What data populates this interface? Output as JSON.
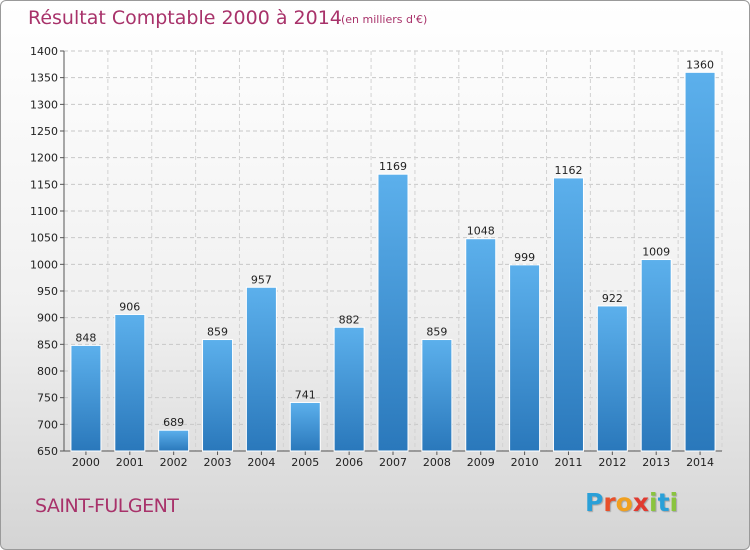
{
  "header": {
    "title": "Résultat Comptable 2000 à 2014",
    "unit": "(en milliers d'€)"
  },
  "footer": {
    "city": "SAINT-FULGENT",
    "logo_letters": [
      "P",
      "r",
      "o",
      "x",
      "i",
      "t",
      "i"
    ],
    "logo_colors": [
      "#2aa0d8",
      "#e8502a",
      "#f0a020",
      "#e03a30",
      "#8ac43f",
      "#2aa0d8",
      "#8ac43f"
    ]
  },
  "chart_data": {
    "type": "bar",
    "title": "Résultat Comptable 2000 à 2014",
    "categories": [
      "2000",
      "2001",
      "2002",
      "2003",
      "2004",
      "2005",
      "2006",
      "2007",
      "2008",
      "2009",
      "2010",
      "2011",
      "2012",
      "2013",
      "2014"
    ],
    "values": [
      848,
      906,
      689,
      859,
      957,
      741,
      882,
      1169,
      859,
      1048,
      999,
      1162,
      922,
      1009,
      1360
    ],
    "ylim": [
      650,
      1400
    ],
    "yticks": [
      650,
      700,
      750,
      800,
      850,
      900,
      950,
      1000,
      1050,
      1100,
      1150,
      1200,
      1250,
      1300,
      1350,
      1400
    ],
    "grid": true,
    "bar_color": "#3d8fd4",
    "xlabel": "",
    "ylabel": ""
  }
}
